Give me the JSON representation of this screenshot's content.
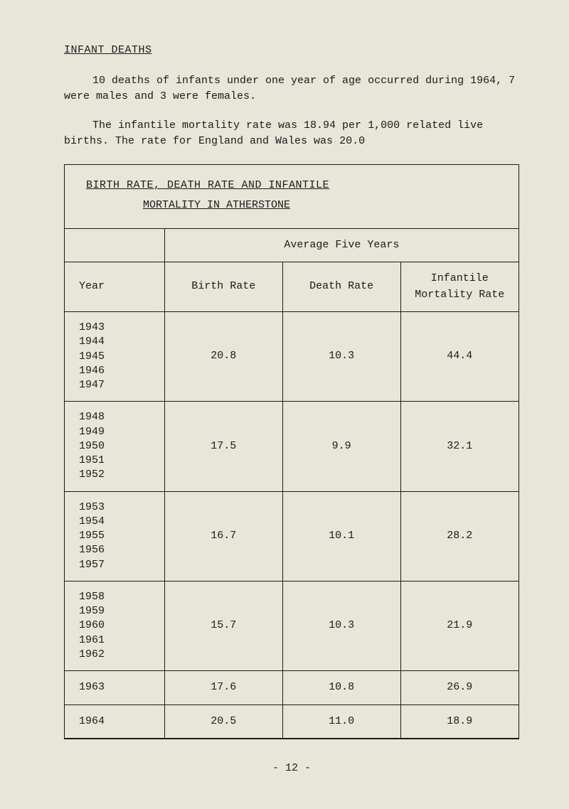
{
  "sectionTitle": "INFANT DEATHS",
  "para1": "10 deaths of infants under one year of age occurred during 1964, 7 were males and 3 were females.",
  "para2": "The infantile mortality rate was 18.94 per 1,000 related live births.  The rate for England and Wales was 20.0",
  "tableTitle": "BIRTH RATE, DEATH RATE AND INFANTILE",
  "tableSubtitle": "MORTALITY IN ATHERSTONE",
  "spanHeader": "Average Five Years",
  "columns": {
    "year": "Year",
    "birth": "Birth Rate",
    "death": "Death Rate",
    "infant": "Infantile Mortality Rate"
  },
  "rows": [
    {
      "years": "1943\n1944\n1945\n1946\n1947",
      "birth": "20.8",
      "death": "10.3",
      "infant": "44.4"
    },
    {
      "years": "1948\n1949\n1950\n1951\n1952",
      "birth": "17.5",
      "death": "9.9",
      "infant": "32.1"
    },
    {
      "years": "1953\n1954\n1955\n1956\n1957",
      "birth": "16.7",
      "death": "10.1",
      "infant": "28.2"
    },
    {
      "years": "1958\n1959\n1960\n1961\n1962",
      "birth": "15.7",
      "death": "10.3",
      "infant": "21.9"
    },
    {
      "years": "1963",
      "birth": "17.6",
      "death": "10.8",
      "infant": "26.9"
    },
    {
      "years": "1964",
      "birth": "20.5",
      "death": "11.0",
      "infant": "18.9"
    }
  ],
  "pageNum": "- 12 -"
}
